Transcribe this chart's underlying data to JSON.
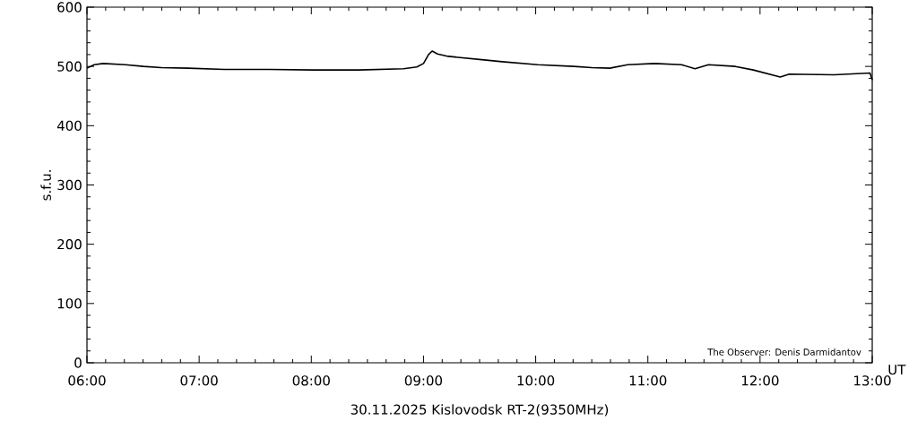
{
  "chart_data": {
    "type": "line",
    "title": "30.11.2025 Kislovodsk RT-2(9350MHz)",
    "xlabel": "UT",
    "ylabel": "s.f.u.",
    "annotations": [
      "The Observer: Denis Darmidantov"
    ],
    "x": [
      6.0,
      6.064,
      6.144,
      6.344,
      6.503,
      6.663,
      6.903,
      7.223,
      7.622,
      8.022,
      8.421,
      8.821,
      8.941,
      9.0,
      9.045,
      9.077,
      9.125,
      9.22,
      9.54,
      9.7,
      10.02,
      10.34,
      10.5,
      10.66,
      10.82,
      11.06,
      11.3,
      11.42,
      11.54,
      11.78,
      11.94,
      12.18,
      12.26,
      12.66,
      12.98,
      13.0
    ],
    "series": [
      {
        "color": "#000000",
        "values": [
          497,
          503,
          505,
          503,
          500,
          498,
          497,
          495,
          495,
          494,
          494,
          496,
          499,
          505,
          520,
          526,
          521,
          517,
          511,
          508,
          503,
          500,
          498,
          497,
          503,
          505,
          503,
          496,
          503,
          500,
          494,
          482,
          487,
          486,
          489,
          477
        ]
      }
    ],
    "xlim": [
      6,
      13
    ],
    "ylim": [
      0,
      600
    ],
    "xticks": [
      {
        "value": 6,
        "label": "06:00"
      },
      {
        "value": 7,
        "label": "07:00"
      },
      {
        "value": 8,
        "label": "08:00"
      },
      {
        "value": 9,
        "label": "09:00"
      },
      {
        "value": 10,
        "label": "10:00"
      },
      {
        "value": 11,
        "label": "11:00"
      },
      {
        "value": 12,
        "label": "12:00"
      },
      {
        "value": 13,
        "label": "13:00"
      }
    ],
    "yticks": [
      0,
      100,
      200,
      300,
      400,
      500,
      600
    ],
    "grid": false,
    "marker": "none",
    "line_style": "solid"
  }
}
